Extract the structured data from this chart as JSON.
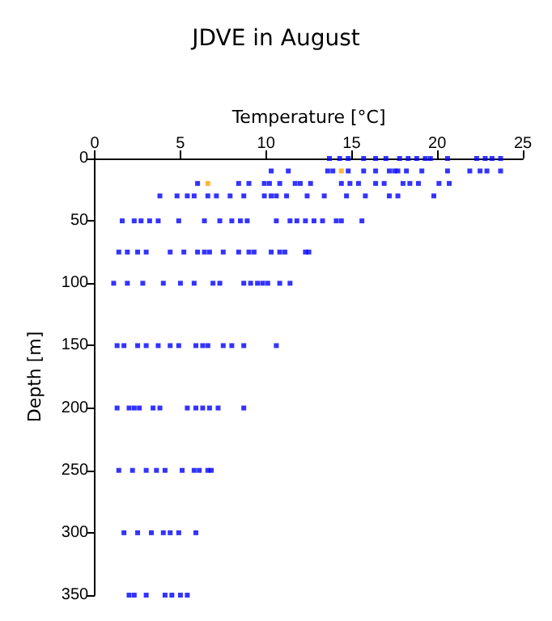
{
  "chart_data": {
    "type": "scatter",
    "title": "JDVE in August",
    "xlabel": "Temperature [°C]",
    "ylabel": "Depth [m]",
    "xlim": [
      0,
      25
    ],
    "xticks": [
      0,
      5,
      10,
      15,
      20,
      25
    ],
    "ylim": [
      350,
      0
    ],
    "yticks": [
      0,
      50,
      100,
      150,
      200,
      250,
      300,
      350
    ],
    "grid": false,
    "marker": "square",
    "series": [
      {
        "color": "#0000ff",
        "x": [
          13.7,
          14.3,
          14.8,
          15.7,
          16.4,
          17.0,
          17.8,
          18.3,
          18.8,
          19.3,
          19.6,
          20.6,
          22.3,
          22.8,
          23.2,
          23.7,
          10.3,
          11.3,
          13.6,
          13.9,
          14.8,
          15.7,
          16.4,
          17.2,
          17.5,
          17.7,
          18.2,
          19.1,
          20.6,
          21.9,
          22.5,
          22.9,
          23.7,
          6.0,
          8.4,
          9.0,
          9.9,
          10.2,
          10.8,
          11.7,
          12.0,
          12.6,
          14.4,
          14.9,
          15.4,
          16.4,
          16.9,
          18.0,
          18.4,
          18.9,
          20.1,
          20.7,
          3.8,
          4.8,
          5.4,
          5.8,
          6.6,
          7.1,
          7.9,
          8.7,
          9.9,
          10.3,
          10.6,
          11.2,
          12.4,
          13.4,
          14.7,
          15.8,
          17.2,
          17.7,
          19.8,
          1.6,
          2.3,
          2.7,
          3.2,
          3.7,
          4.9,
          6.4,
          7.3,
          8.0,
          8.5,
          8.9,
          10.6,
          11.4,
          11.8,
          12.3,
          12.8,
          13.3,
          14.1,
          14.4,
          15.6,
          1.4,
          1.9,
          2.5,
          3.0,
          4.4,
          5.2,
          6.0,
          6.4,
          6.7,
          7.5,
          8.4,
          9.0,
          9.3,
          10.3,
          10.8,
          11.1,
          12.3,
          12.5,
          1.1,
          1.9,
          2.8,
          4.0,
          5.0,
          5.8,
          6.9,
          7.3,
          8.7,
          9.1,
          9.5,
          9.8,
          10.1,
          10.8,
          11.4,
          1.3,
          1.7,
          2.5,
          3.0,
          3.7,
          4.4,
          4.9,
          5.9,
          6.3,
          6.6,
          7.5,
          8.0,
          8.7,
          10.6,
          1.3,
          2.0,
          2.3,
          2.6,
          3.4,
          3.8,
          5.4,
          5.9,
          6.3,
          6.7,
          7.2,
          8.7,
          1.4,
          2.2,
          3.0,
          3.6,
          4.1,
          5.1,
          5.8,
          6.1,
          6.6,
          6.8,
          1.7,
          2.5,
          3.3,
          4.0,
          4.4,
          4.9,
          5.9,
          2.0,
          2.3,
          3.0,
          4.1,
          4.5,
          5.0,
          5.4
        ],
        "values": [
          0,
          0,
          0,
          0,
          0,
          0,
          0,
          0,
          0,
          0,
          0,
          0,
          0,
          0,
          0,
          0,
          10,
          10,
          10,
          10,
          10,
          10,
          10,
          10,
          10,
          10,
          10,
          10,
          10,
          10,
          10,
          10,
          10,
          20,
          20,
          20,
          20,
          20,
          20,
          20,
          20,
          20,
          20,
          20,
          20,
          20,
          20,
          20,
          20,
          20,
          20,
          20,
          30,
          30,
          30,
          30,
          30,
          30,
          30,
          30,
          30,
          30,
          30,
          30,
          30,
          30,
          30,
          30,
          30,
          30,
          30,
          50,
          50,
          50,
          50,
          50,
          50,
          50,
          50,
          50,
          50,
          50,
          50,
          50,
          50,
          50,
          50,
          50,
          50,
          50,
          50,
          75,
          75,
          75,
          75,
          75,
          75,
          75,
          75,
          75,
          75,
          75,
          75,
          75,
          75,
          75,
          75,
          75,
          75,
          100,
          100,
          100,
          100,
          100,
          100,
          100,
          100,
          100,
          100,
          100,
          100,
          100,
          100,
          100,
          150,
          150,
          150,
          150,
          150,
          150,
          150,
          150,
          150,
          150,
          150,
          150,
          150,
          150,
          200,
          200,
          200,
          200,
          200,
          200,
          200,
          200,
          200,
          200,
          200,
          200,
          250,
          250,
          250,
          250,
          250,
          250,
          250,
          250,
          250,
          250,
          300,
          300,
          300,
          300,
          300,
          300,
          300,
          350,
          350,
          350,
          350,
          350,
          350,
          350
        ]
      },
      {
        "color": "#ffa500",
        "x": [
          14.4,
          6.6
        ],
        "values": [
          10,
          20
        ]
      }
    ]
  }
}
